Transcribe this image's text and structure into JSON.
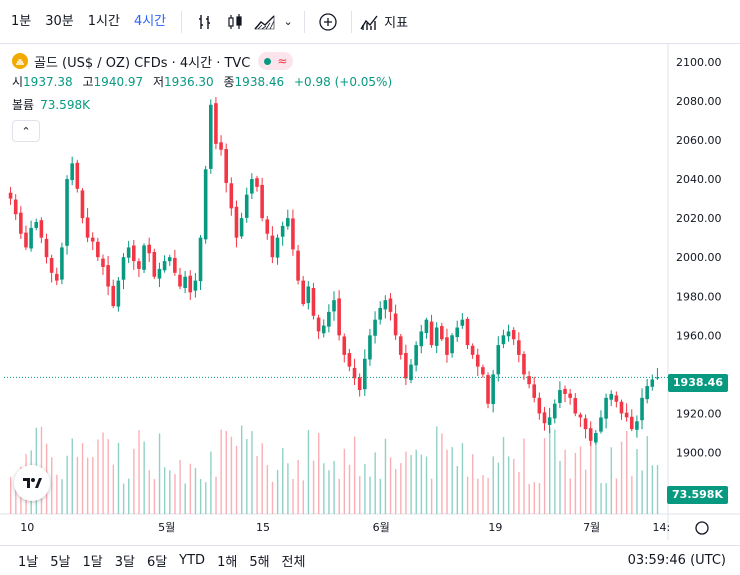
{
  "toolbar": {
    "intervals": [
      "1분",
      "30분",
      "1시간",
      "4시간"
    ],
    "active_interval": "4시간",
    "indicators_label": "지표"
  },
  "legend": {
    "title": "골드 (US$ / OZ) CFDs · 4시간 · TVC",
    "open_label": "시",
    "open": "1937.38",
    "high_label": "고",
    "high": "1940.97",
    "low_label": "저",
    "low": "1936.30",
    "close_label": "종",
    "close": "1938.46",
    "change": "+0.98 (+0.05%)",
    "volume_label": "볼륨",
    "volume": "73.598K",
    "status_approx": "≈"
  },
  "price_axis": [
    "2100.00",
    "2080.00",
    "2060.00",
    "2040.00",
    "2020.00",
    "2000.00",
    "1980.00",
    "1960.00",
    "1920.00",
    "1900.00"
  ],
  "last_price_label": "1938.46",
  "volume_label_badge": "73.598K",
  "time_axis": [
    "10",
    "5월",
    "15",
    "6월",
    "19",
    "7월",
    "14:"
  ],
  "range_buttons": [
    "1날",
    "5날",
    "1달",
    "3달",
    "6달",
    "YTD",
    "1해",
    "5해",
    "전체"
  ],
  "clock": "03:59:46 (UTC)",
  "colors": {
    "up": "#089981",
    "down": "#f23645",
    "accent": "#2962ff"
  },
  "chart_data": {
    "type": "candlestick",
    "title": "골드 (US$ / OZ) CFDs · 4시간 · TVC",
    "y_range": [
      1888,
      2104
    ],
    "last_price": 1938.46,
    "volume_last": "73.598K",
    "x_ticks": [
      "10",
      "5월",
      "15",
      "6월",
      "19",
      "7월",
      "14:"
    ],
    "close_path": [
      2030,
      2022,
      2012,
      2005,
      2015,
      2018,
      2010,
      2000,
      1992,
      1988,
      2005,
      2040,
      2048,
      2035,
      2020,
      2010,
      2008,
      2000,
      1995,
      1985,
      1975,
      1988,
      2000,
      2005,
      1998,
      1994,
      2006,
      2002,
      1990,
      1994,
      1998,
      2000,
      1992,
      1985,
      1990,
      1982,
      1988,
      2010,
      2045,
      2078,
      2058,
      2055,
      2038,
      2025,
      2010,
      2020,
      2032,
      2040,
      2036,
      2020,
      2012,
      2000,
      2010,
      2016,
      2020,
      2004,
      1988,
      1976,
      1985,
      1970,
      1962,
      1965,
      1972,
      1978,
      1960,
      1950,
      1944,
      1938,
      1932,
      1948,
      1960,
      1968,
      1974,
      1978,
      1972,
      1960,
      1950,
      1938,
      1945,
      1955,
      1962,
      1968,
      1955,
      1964,
      1958,
      1950,
      1960,
      1964,
      1968,
      1955,
      1950,
      1944,
      1940,
      1925,
      1940,
      1955,
      1960,
      1962,
      1958,
      1950,
      1940,
      1935,
      1928,
      1920,
      1915,
      1918,
      1925,
      1932,
      1930,
      1928,
      1920,
      1918,
      1912,
      1906,
      1910,
      1918,
      1928,
      1930,
      1926,
      1920,
      1918,
      1912,
      1916,
      1928,
      1934,
      1937.38,
      1938.46
    ]
  }
}
